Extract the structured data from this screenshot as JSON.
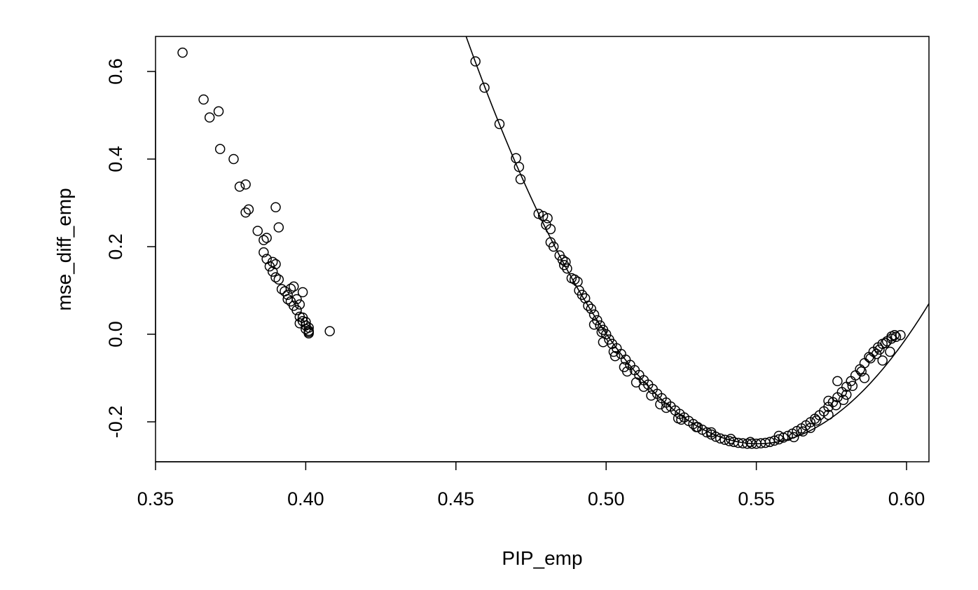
{
  "chart_data": {
    "type": "scatter",
    "title": "",
    "xlabel": "PIP_emp",
    "ylabel": "mse_diff_emp",
    "xlim": [
      0.347,
      0.608
    ],
    "ylim": [
      -0.29,
      0.68
    ],
    "xticks": [
      0.35,
      0.4,
      0.45,
      0.5,
      0.55,
      0.6
    ],
    "xtick_labels": [
      "0.35",
      "0.40",
      "0.45",
      "0.50",
      "0.55",
      "0.60"
    ],
    "yticks": [
      -0.2,
      0.0,
      0.2,
      0.4,
      0.6
    ],
    "ytick_labels": [
      "-0.2",
      "0.0",
      "0.2",
      "0.4",
      "0.6"
    ],
    "grid": false,
    "legend": "none",
    "marker": "open-circle",
    "color": "#000000",
    "series": [
      {
        "points": [
          [
            0.359,
            0.643
          ],
          [
            0.366,
            0.536
          ],
          [
            0.368,
            0.495
          ],
          [
            0.371,
            0.509
          ],
          [
            0.3715,
            0.423
          ],
          [
            0.376,
            0.4
          ],
          [
            0.378,
            0.337
          ],
          [
            0.38,
            0.342
          ],
          [
            0.38,
            0.278
          ],
          [
            0.381,
            0.285
          ],
          [
            0.384,
            0.236
          ],
          [
            0.386,
            0.215
          ],
          [
            0.386,
            0.187
          ],
          [
            0.387,
            0.172
          ],
          [
            0.387,
            0.22
          ],
          [
            0.388,
            0.155
          ],
          [
            0.389,
            0.165
          ],
          [
            0.39,
            0.29
          ],
          [
            0.389,
            0.143
          ],
          [
            0.39,
            0.13
          ],
          [
            0.39,
            0.16
          ],
          [
            0.391,
            0.244
          ],
          [
            0.391,
            0.125
          ],
          [
            0.392,
            0.103
          ],
          [
            0.393,
            0.098
          ],
          [
            0.394,
            0.09
          ],
          [
            0.394,
            0.08
          ],
          [
            0.395,
            0.104
          ],
          [
            0.395,
            0.075
          ],
          [
            0.396,
            0.065
          ],
          [
            0.396,
            0.109
          ],
          [
            0.397,
            0.08
          ],
          [
            0.397,
            0.055
          ],
          [
            0.398,
            0.068
          ],
          [
            0.398,
            0.04
          ],
          [
            0.398,
            0.025
          ],
          [
            0.399,
            0.03
          ],
          [
            0.399,
            0.096
          ],
          [
            0.399,
            0.038
          ],
          [
            0.4,
            0.02
          ],
          [
            0.4,
            0.028
          ],
          [
            0.4,
            0.012
          ],
          [
            0.401,
            0.015
          ],
          [
            0.401,
            0.005
          ],
          [
            0.401,
            0.008
          ],
          [
            0.401,
            0.002
          ],
          [
            0.408,
            0.007
          ],
          [
            0.4565,
            0.623
          ],
          [
            0.4595,
            0.563
          ],
          [
            0.4645,
            0.48
          ],
          [
            0.47,
            0.402
          ],
          [
            0.471,
            0.382
          ],
          [
            0.4715,
            0.354
          ],
          [
            0.4775,
            0.275
          ],
          [
            0.479,
            0.27
          ],
          [
            0.48,
            0.25
          ],
          [
            0.4805,
            0.265
          ],
          [
            0.4815,
            0.24
          ],
          [
            0.4815,
            0.21
          ],
          [
            0.4825,
            0.2
          ],
          [
            0.4845,
            0.18
          ],
          [
            0.4855,
            0.17
          ],
          [
            0.486,
            0.158
          ],
          [
            0.4865,
            0.165
          ],
          [
            0.487,
            0.15
          ],
          [
            0.4885,
            0.128
          ],
          [
            0.4895,
            0.125
          ],
          [
            0.4905,
            0.12
          ],
          [
            0.491,
            0.1
          ],
          [
            0.492,
            0.09
          ],
          [
            0.493,
            0.082
          ],
          [
            0.494,
            0.065
          ],
          [
            0.495,
            0.058
          ],
          [
            0.496,
            0.045
          ],
          [
            0.497,
            0.032
          ],
          [
            0.498,
            0.02
          ],
          [
            0.499,
            0.01
          ],
          [
            0.5,
            0.0
          ],
          [
            0.501,
            -0.012
          ],
          [
            0.502,
            -0.022
          ],
          [
            0.5035,
            -0.032
          ],
          [
            0.505,
            -0.045
          ],
          [
            0.5065,
            -0.058
          ],
          [
            0.508,
            -0.07
          ],
          [
            0.5095,
            -0.082
          ],
          [
            0.511,
            -0.093
          ],
          [
            0.5125,
            -0.105
          ],
          [
            0.514,
            -0.115
          ],
          [
            0.5155,
            -0.125
          ],
          [
            0.517,
            -0.136
          ],
          [
            0.5185,
            -0.146
          ],
          [
            0.52,
            -0.156
          ],
          [
            0.5215,
            -0.165
          ],
          [
            0.523,
            -0.174
          ],
          [
            0.5245,
            -0.182
          ],
          [
            0.526,
            -0.19
          ],
          [
            0.5275,
            -0.198
          ],
          [
            0.529,
            -0.205
          ],
          [
            0.5305,
            -0.212
          ],
          [
            0.532,
            -0.218
          ],
          [
            0.5335,
            -0.224
          ],
          [
            0.535,
            -0.229
          ],
          [
            0.5365,
            -0.234
          ],
          [
            0.538,
            -0.238
          ],
          [
            0.5395,
            -0.241
          ],
          [
            0.541,
            -0.244
          ],
          [
            0.5425,
            -0.246
          ],
          [
            0.544,
            -0.248
          ],
          [
            0.5455,
            -0.249
          ],
          [
            0.547,
            -0.25
          ],
          [
            0.5485,
            -0.25
          ],
          [
            0.55,
            -0.25
          ],
          [
            0.5515,
            -0.249
          ],
          [
            0.553,
            -0.248
          ],
          [
            0.5545,
            -0.246
          ],
          [
            0.556,
            -0.243
          ],
          [
            0.5575,
            -0.24
          ],
          [
            0.559,
            -0.236
          ],
          [
            0.5605,
            -0.232
          ],
          [
            0.562,
            -0.227
          ],
          [
            0.5635,
            -0.221
          ],
          [
            0.565,
            -0.215
          ],
          [
            0.5665,
            -0.208
          ],
          [
            0.568,
            -0.201
          ],
          [
            0.5695,
            -0.193
          ],
          [
            0.571,
            -0.185
          ],
          [
            0.5725,
            -0.176
          ],
          [
            0.574,
            -0.166
          ],
          [
            0.5755,
            -0.155
          ],
          [
            0.577,
            -0.144
          ],
          [
            0.5785,
            -0.132
          ],
          [
            0.58,
            -0.12
          ],
          [
            0.5815,
            -0.107
          ],
          [
            0.583,
            -0.094
          ],
          [
            0.5845,
            -0.08
          ],
          [
            0.586,
            -0.066
          ],
          [
            0.5875,
            -0.052
          ],
          [
            0.589,
            -0.04
          ],
          [
            0.5905,
            -0.03
          ],
          [
            0.592,
            -0.022
          ],
          [
            0.5935,
            -0.016
          ],
          [
            0.595,
            -0.01
          ],
          [
            0.5965,
            -0.006
          ],
          [
            0.598,
            -0.002
          ],
          [
            0.577,
            -0.107
          ],
          [
            0.574,
            -0.152
          ],
          [
            0.585,
            -0.085
          ],
          [
            0.588,
            -0.055
          ],
          [
            0.59,
            -0.045
          ],
          [
            0.591,
            -0.035
          ],
          [
            0.593,
            -0.02
          ],
          [
            0.595,
            -0.005
          ],
          [
            0.596,
            -0.002
          ],
          [
            0.5765,
            -0.162
          ],
          [
            0.58,
            -0.138
          ],
          [
            0.582,
            -0.118
          ],
          [
            0.57,
            -0.197
          ],
          [
            0.5655,
            -0.222
          ],
          [
            0.53,
            -0.212
          ],
          [
            0.525,
            -0.195
          ],
          [
            0.52,
            -0.168
          ],
          [
            0.515,
            -0.14
          ],
          [
            0.51,
            -0.11
          ],
          [
            0.506,
            -0.075
          ],
          [
            0.503,
            -0.05
          ],
          [
            0.499,
            -0.018
          ],
          [
            0.496,
            0.022
          ],
          [
            0.5575,
            -0.232
          ],
          [
            0.548,
            -0.246
          ],
          [
            0.5415,
            -0.239
          ],
          [
            0.535,
            -0.224
          ],
          [
            0.5625,
            -0.235
          ],
          [
            0.568,
            -0.214
          ],
          [
            0.574,
            -0.184
          ],
          [
            0.579,
            -0.15
          ],
          [
            0.586,
            -0.1
          ],
          [
            0.592,
            -0.06
          ],
          [
            0.5945,
            -0.04
          ],
          [
            0.524,
            -0.192
          ],
          [
            0.518,
            -0.16
          ],
          [
            0.5125,
            -0.12
          ],
          [
            0.507,
            -0.085
          ],
          [
            0.5025,
            -0.04
          ],
          [
            0.4985,
            0.005
          ]
        ]
      }
    ],
    "curve": {
      "type": "quadratic-fit",
      "vertex_x": 0.5505,
      "vertex_y": -0.25,
      "coefficient": 98.6,
      "x_start": 0.4524,
      "x_end": 0.608
    }
  }
}
